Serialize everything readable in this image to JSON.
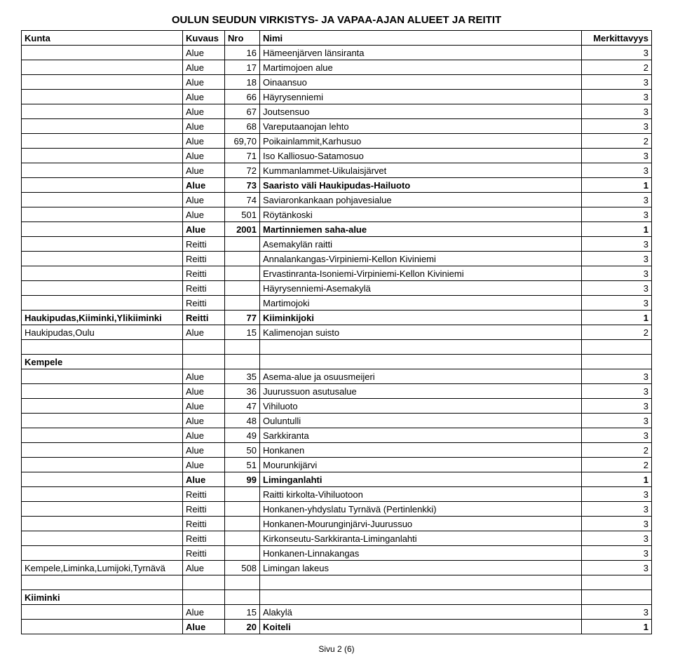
{
  "title": "OULUN SEUDUN VIRKISTYS- JA VAPAA-AJAN ALUEET JA REITIT",
  "columns": {
    "kunta": "Kunta",
    "kuvaus": "Kuvaus",
    "nro": "Nro",
    "nimi": "Nimi",
    "merk": "Merkittavyys"
  },
  "rows": [
    {
      "kunta": "",
      "kuvaus": "Alue",
      "nro": "16",
      "nimi": "Hämeenjärven länsiranta",
      "merk": "3"
    },
    {
      "kunta": "",
      "kuvaus": "Alue",
      "nro": "17",
      "nimi": "Martimojoen alue",
      "merk": "2"
    },
    {
      "kunta": "",
      "kuvaus": "Alue",
      "nro": "18",
      "nimi": "Oinaansuo",
      "merk": "3"
    },
    {
      "kunta": "",
      "kuvaus": "Alue",
      "nro": "66",
      "nimi": "Häyrysenniemi",
      "merk": "3"
    },
    {
      "kunta": "",
      "kuvaus": "Alue",
      "nro": "67",
      "nimi": "Joutsensuo",
      "merk": "3"
    },
    {
      "kunta": "",
      "kuvaus": "Alue",
      "nro": "68",
      "nimi": "Vareputaanojan lehto",
      "merk": "3"
    },
    {
      "kunta": "",
      "kuvaus": "Alue",
      "nro": "69,70",
      "nimi": "Poikainlammit,Karhusuo",
      "merk": "2"
    },
    {
      "kunta": "",
      "kuvaus": "Alue",
      "nro": "71",
      "nimi": "Iso Kalliosuo-Satamosuo",
      "merk": "3"
    },
    {
      "kunta": "",
      "kuvaus": "Alue",
      "nro": "72",
      "nimi": "Kummanlammet-Uikulaisjärvet",
      "merk": "3"
    },
    {
      "kunta": "",
      "kuvaus": "Alue",
      "nro": "73",
      "nimi": "Saaristo väli Haukipudas-Hailuoto",
      "merk": "1",
      "bold": true
    },
    {
      "kunta": "",
      "kuvaus": "Alue",
      "nro": "74",
      "nimi": "Saviaronkankaan pohjavesialue",
      "merk": "3"
    },
    {
      "kunta": "",
      "kuvaus": "Alue",
      "nro": "501",
      "nimi": "Röytänkoski",
      "merk": "3"
    },
    {
      "kunta": "",
      "kuvaus": "Alue",
      "nro": "2001",
      "nimi": "Martinniemen saha-alue",
      "merk": "1",
      "bold": true
    },
    {
      "kunta": "",
      "kuvaus": "Reitti",
      "nro": "",
      "nimi": "Asemakylän raitti",
      "merk": "3"
    },
    {
      "kunta": "",
      "kuvaus": "Reitti",
      "nro": "",
      "nimi": "Annalankangas-Virpiniemi-Kellon Kiviniemi",
      "merk": "3"
    },
    {
      "kunta": "",
      "kuvaus": "Reitti",
      "nro": "",
      "nimi": "Ervastinranta-Isoniemi-Virpiniemi-Kellon Kiviniemi",
      "merk": "3"
    },
    {
      "kunta": "",
      "kuvaus": "Reitti",
      "nro": "",
      "nimi": "Häyrysenniemi-Asemakylä",
      "merk": "3"
    },
    {
      "kunta": "",
      "kuvaus": "Reitti",
      "nro": "",
      "nimi": "Martimojoki",
      "merk": "3"
    },
    {
      "kunta": "Haukipudas,Kiiminki,Ylikiiminki",
      "kuvaus": "Reitti",
      "nro": "77",
      "nimi": "Kiiminkijoki",
      "merk": "1",
      "bold": true
    },
    {
      "kunta": "Haukipudas,Oulu",
      "kuvaus": "Alue",
      "nro": "15",
      "nimi": "Kalimenojan suisto",
      "merk": "2"
    },
    {
      "blank": true
    },
    {
      "kunta": "Kempele",
      "section": true
    },
    {
      "kunta": "",
      "kuvaus": "Alue",
      "nro": "35",
      "nimi": "Asema-alue ja osuusmeijeri",
      "merk": "3"
    },
    {
      "kunta": "",
      "kuvaus": "Alue",
      "nro": "36",
      "nimi": "Juurussuon asutusalue",
      "merk": "3"
    },
    {
      "kunta": "",
      "kuvaus": "Alue",
      "nro": "47",
      "nimi": "Vihiluoto",
      "merk": "3"
    },
    {
      "kunta": "",
      "kuvaus": "Alue",
      "nro": "48",
      "nimi": "Ouluntulli",
      "merk": "3"
    },
    {
      "kunta": "",
      "kuvaus": "Alue",
      "nro": "49",
      "nimi": "Sarkkiranta",
      "merk": "3"
    },
    {
      "kunta": "",
      "kuvaus": "Alue",
      "nro": "50",
      "nimi": "Honkanen",
      "merk": "2"
    },
    {
      "kunta": "",
      "kuvaus": "Alue",
      "nro": "51",
      "nimi": "Mourunkijärvi",
      "merk": "2"
    },
    {
      "kunta": "",
      "kuvaus": "Alue",
      "nro": "99",
      "nimi": "Liminganlahti",
      "merk": "1",
      "bold": true
    },
    {
      "kunta": "",
      "kuvaus": "Reitti",
      "nro": "",
      "nimi": "Raitti kirkolta-Vihiluotoon",
      "merk": "3"
    },
    {
      "kunta": "",
      "kuvaus": "Reitti",
      "nro": "",
      "nimi": "Honkanen-yhdyslatu Tyrnävä (Pertinlenkki)",
      "merk": "3"
    },
    {
      "kunta": "",
      "kuvaus": "Reitti",
      "nro": "",
      "nimi": "Honkanen-Mourunginjärvi-Juurussuo",
      "merk": "3"
    },
    {
      "kunta": "",
      "kuvaus": "Reitti",
      "nro": "",
      "nimi": "Kirkonseutu-Sarkkiranta-Liminganlahti",
      "merk": "3"
    },
    {
      "kunta": "",
      "kuvaus": "Reitti",
      "nro": "",
      "nimi": "Honkanen-Linnakangas",
      "merk": "3"
    },
    {
      "kunta": "Kempele,Liminka,Lumijoki,Tyrnävä",
      "kuvaus": "Alue",
      "nro": "508",
      "nimi": "Limingan lakeus",
      "merk": "3"
    },
    {
      "blank": true
    },
    {
      "kunta": "Kiiminki",
      "section": true
    },
    {
      "kunta": "",
      "kuvaus": "Alue",
      "nro": "15",
      "nimi": "Alakylä",
      "merk": "3"
    },
    {
      "kunta": "",
      "kuvaus": "Alue",
      "nro": "20",
      "nimi": "Koiteli",
      "merk": "1",
      "bold": true
    }
  ],
  "footer": "Sivu 2 (6)"
}
